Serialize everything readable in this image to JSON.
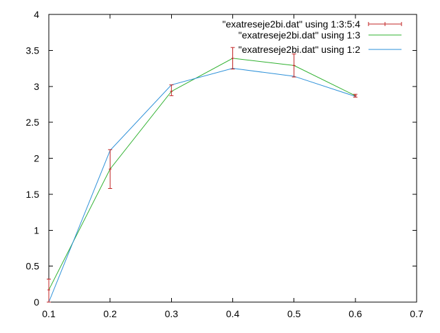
{
  "chart_data": {
    "type": "line",
    "title": "",
    "xlabel": "",
    "ylabel": "",
    "xlim": [
      0.1,
      0.7
    ],
    "ylim": [
      0,
      4
    ],
    "x_ticks": [
      0.1,
      0.2,
      0.3,
      0.4,
      0.5,
      0.6,
      0.7
    ],
    "y_ticks": [
      0,
      0.5,
      1,
      1.5,
      2,
      2.5,
      3,
      3.5,
      4
    ],
    "x_tick_labels": [
      "0.1",
      "0.2",
      "0.3",
      "0.4",
      "0.5",
      "0.6",
      "0.7"
    ],
    "y_tick_labels": [
      "0",
      "0.5",
      "1",
      "1.5",
      "2",
      "2.5",
      "3",
      "3.5",
      "4"
    ],
    "grid": false,
    "legend_position": "top-right",
    "series": [
      {
        "name": "\"exatreseje2bi.dat\" using 1:3:5:4",
        "style": "errorbars",
        "color": "#c02020",
        "x": [
          0.1,
          0.2,
          0.3,
          0.4,
          0.5,
          0.6
        ],
        "y": [
          0.17,
          1.85,
          2.93,
          3.39,
          3.29,
          2.87
        ],
        "y_low": [
          0.0,
          1.58,
          2.87,
          3.24,
          3.13,
          2.85
        ],
        "y_high": [
          0.32,
          2.12,
          3.02,
          3.54,
          3.45,
          2.89
        ]
      },
      {
        "name": "\"exatreseje2bi.dat\" using 1:3",
        "style": "line",
        "color": "#2db02d",
        "x": [
          0.1,
          0.2,
          0.3,
          0.4,
          0.5,
          0.6
        ],
        "y": [
          0.17,
          1.85,
          2.93,
          3.39,
          3.29,
          2.87
        ]
      },
      {
        "name": "\"exatreseje2bi.dat\" using 1:2",
        "style": "line",
        "color": "#2a8fd8",
        "x": [
          0.1,
          0.2,
          0.3,
          0.4,
          0.5,
          0.6
        ],
        "y": [
          0.0,
          2.11,
          3.02,
          3.25,
          3.14,
          2.86
        ]
      }
    ]
  }
}
